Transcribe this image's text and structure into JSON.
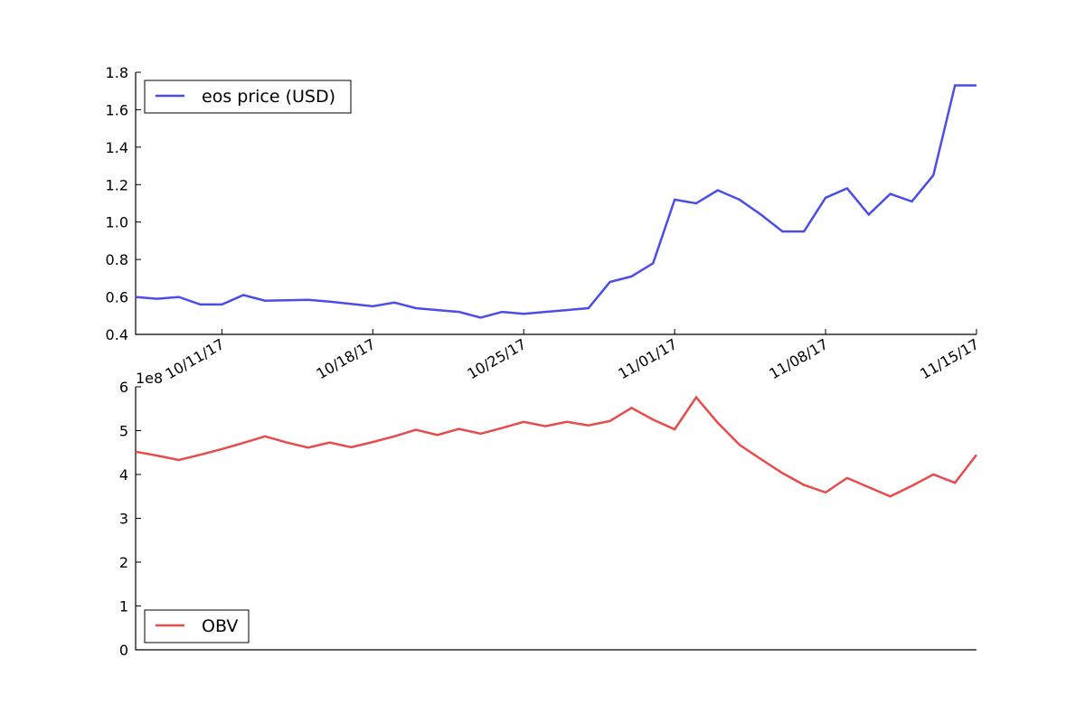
{
  "chart_data": [
    {
      "type": "line",
      "x": [
        "2017-10-07",
        "2017-10-08",
        "2017-10-09",
        "2017-10-10",
        "2017-10-11",
        "2017-10-12",
        "2017-10-13",
        "2017-10-15",
        "2017-10-16",
        "2017-10-18",
        "2017-10-19",
        "2017-10-20",
        "2017-10-21",
        "2017-10-22",
        "2017-10-23",
        "2017-10-24",
        "2017-10-25",
        "2017-10-26",
        "2017-10-27",
        "2017-10-28",
        "2017-10-29",
        "2017-10-30",
        "2017-10-31",
        "2017-11-01",
        "2017-11-02",
        "2017-11-03",
        "2017-11-04",
        "2017-11-05",
        "2017-11-06",
        "2017-11-07",
        "2017-11-08",
        "2017-11-09",
        "2017-11-10",
        "2017-11-11",
        "2017-11-12",
        "2017-11-13",
        "2017-11-14",
        "2017-11-15"
      ],
      "series": [
        {
          "name": "eos price (USD)",
          "color": "#4b4de8",
          "values": [
            0.6,
            0.59,
            0.6,
            0.56,
            0.56,
            0.61,
            0.58,
            0.585,
            0.575,
            0.55,
            0.57,
            0.54,
            0.53,
            0.52,
            0.49,
            0.52,
            0.51,
            0.52,
            0.53,
            0.54,
            0.68,
            0.71,
            0.78,
            1.12,
            1.1,
            1.17,
            1.12,
            1.04,
            0.95,
            0.95,
            1.13,
            1.18,
            1.04,
            1.15,
            1.11,
            1.25,
            1.73,
            1.73
          ]
        }
      ],
      "ylim": [
        0.4,
        1.8
      ],
      "yticks": [
        "0.4",
        "0.6",
        "0.8",
        "1.0",
        "1.2",
        "1.4",
        "1.6",
        "1.8"
      ],
      "xticks": [
        "10/11/17",
        "10/18/17",
        "10/25/17",
        "11/01/17",
        "11/08/17",
        "11/15/17"
      ],
      "legend": "top-left",
      "grid": false
    },
    {
      "type": "line",
      "x": [
        "2017-10-07",
        "2017-10-08",
        "2017-10-09",
        "2017-10-10",
        "2017-10-11",
        "2017-10-12",
        "2017-10-13",
        "2017-10-14",
        "2017-10-15",
        "2017-10-16",
        "2017-10-17",
        "2017-10-18",
        "2017-10-19",
        "2017-10-20",
        "2017-10-21",
        "2017-10-22",
        "2017-10-23",
        "2017-10-24",
        "2017-10-25",
        "2017-10-26",
        "2017-10-27",
        "2017-10-28",
        "2017-10-29",
        "2017-10-30",
        "2017-10-31",
        "2017-11-01",
        "2017-11-02",
        "2017-11-03",
        "2017-11-04",
        "2017-11-05",
        "2017-11-06",
        "2017-11-07",
        "2017-11-08",
        "2017-11-09",
        "2017-11-10",
        "2017-11-11",
        "2017-11-12",
        "2017-11-13",
        "2017-11-14",
        "2017-11-15"
      ],
      "series": [
        {
          "name": "OBV",
          "color": "#e84b4b",
          "values": [
            4.52,
            4.43,
            4.33,
            4.45,
            4.58,
            4.72,
            4.87,
            4.73,
            4.61,
            4.73,
            4.62,
            4.74,
            4.87,
            5.02,
            4.9,
            5.04,
            4.93,
            5.06,
            5.2,
            5.1,
            5.2,
            5.12,
            5.22,
            5.52,
            5.25,
            5.03,
            5.76,
            5.18,
            4.68,
            4.35,
            4.03,
            3.76,
            3.59,
            3.92,
            3.71,
            3.5,
            3.74,
            4.0,
            3.81,
            4.45
          ]
        }
      ],
      "y_multiplier": "1e8",
      "ylim": [
        0,
        6
      ],
      "yticks": [
        "0",
        "1",
        "2",
        "3",
        "4",
        "5",
        "6"
      ],
      "legend": "bottom-left",
      "grid": false
    }
  ]
}
